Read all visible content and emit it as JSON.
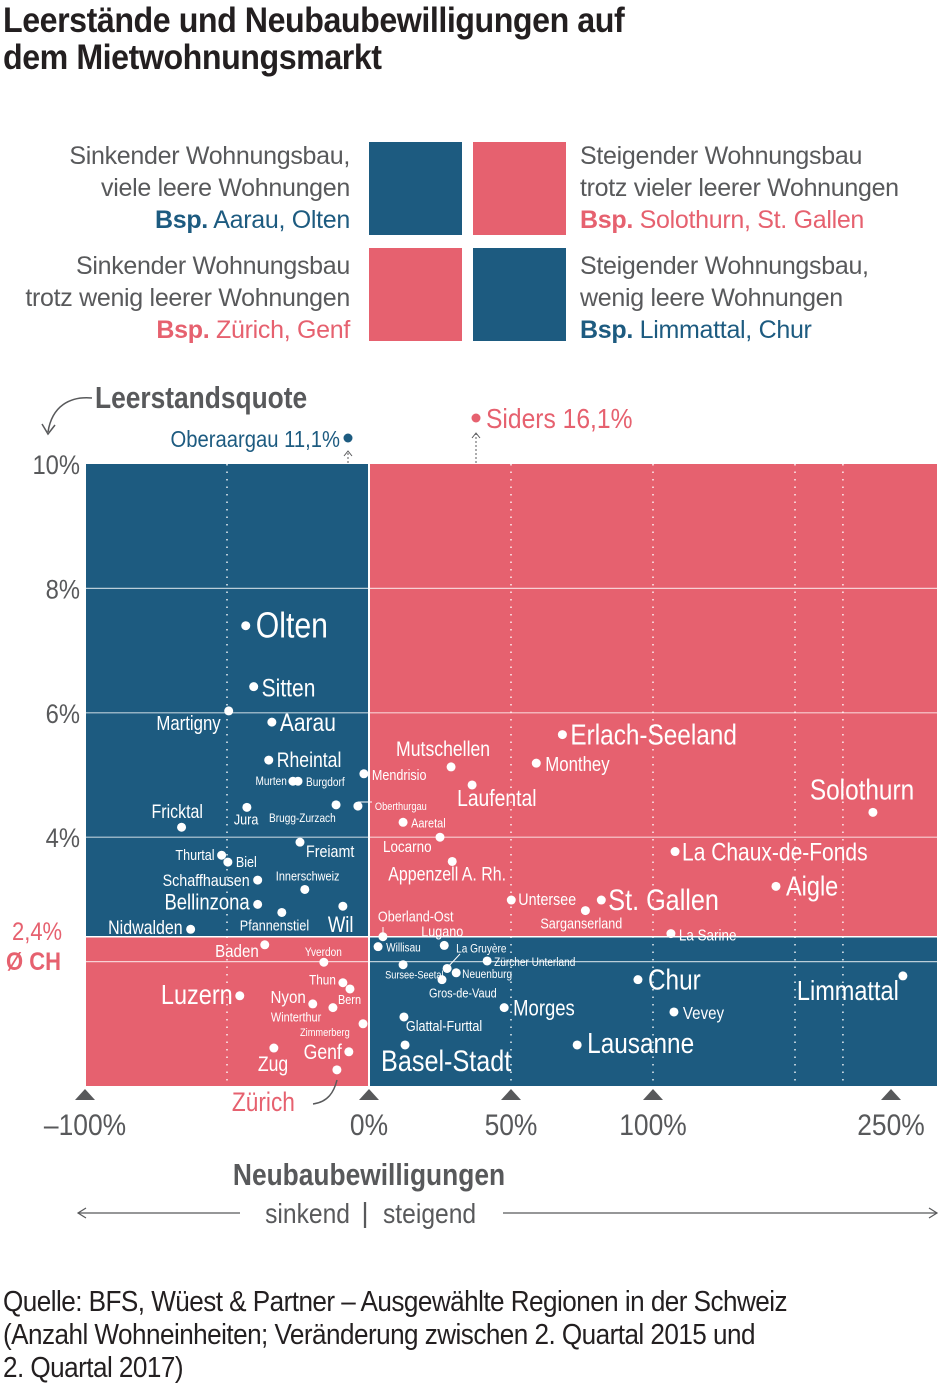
{
  "title_lines": [
    "Leerstände und Neubaubewilligungen auf",
    "dem Mietwohnungsmarkt"
  ],
  "colors": {
    "blue": "#1d5b80",
    "red": "#e6616f",
    "gray": "#58595b"
  },
  "legend": [
    {
      "line1": "Sinkender Wohnungsbau,",
      "line2": "viele leere Wohnungen",
      "bsp": "Bsp.",
      "example": "Aarau, Olten",
      "color": "blue"
    },
    {
      "line1": "Steigender Wohnungsbau",
      "line2": "trotz vieler leerer Wohnungen",
      "bsp": "Bsp.",
      "example": "Solothurn, St. Gallen",
      "color": "red"
    },
    {
      "line1": "Sinkender Wohnungsbau",
      "line2": "trotz wenig leerer Wohnungen",
      "bsp": "Bsp.",
      "example": "Zürich, Genf",
      "color": "red"
    },
    {
      "line1": "Steigender Wohnungsbau,",
      "line2": "wenig leere Wohnungen",
      "bsp": "Bsp.",
      "example": "Limmattal, Chur",
      "color": "blue"
    }
  ],
  "source_lines": [
    "Quelle: BFS, Wüest & Partner – Ausgewählte Regionen in der Schweiz",
    "(Anzahl Wohneinheiten; Veränderung zwischen 2. Quartal 2015 und",
    "2. Quartal 2017)"
  ],
  "chart_data": {
    "type": "scatter",
    "title": "Leerstände und Neubaubewilligungen auf dem Mietwohnungsmarkt",
    "ylabel": "Leerstandsquote",
    "xlabel": "Neubaubewilligungen",
    "xlabel_sub": {
      "left": "sinkend",
      "sep": "|",
      "right": "steigend"
    },
    "x_unit": "%",
    "y_unit": "%",
    "xlim": [
      -100,
      250
    ],
    "ylim": [
      0,
      10
    ],
    "x_ticks": [
      {
        "value": -100,
        "label": "–100%"
      },
      {
        "value": 0,
        "label": "0%"
      },
      {
        "value": 50,
        "label": "50%"
      },
      {
        "value": 100,
        "label": "100%"
      },
      {
        "value": 250,
        "label": "250%"
      }
    ],
    "y_ticks": [
      {
        "value": 10,
        "label": "10%"
      },
      {
        "value": 8,
        "label": "8%"
      },
      {
        "value": 6,
        "label": "6%"
      },
      {
        "value": 4,
        "label": "4%"
      }
    ],
    "average": {
      "value": 2.4,
      "label": "2,4%",
      "name": "Ø CH"
    },
    "outliers": [
      {
        "name": "Oberaargau 11,1%",
        "x": -7,
        "y": 11.1,
        "color": "blue"
      },
      {
        "name": "Siders 16,1%",
        "x": 37,
        "y": 16.1,
        "color": "red"
      }
    ],
    "points": [
      {
        "name": "Olten",
        "x": -43.4,
        "y": 7.4
      },
      {
        "name": "Sitten",
        "x": -40.6,
        "y": 6.42
      },
      {
        "name": "Martigny",
        "x": -49.4,
        "y": 6.03
      },
      {
        "name": "Aarau",
        "x": -34.2,
        "y": 5.85
      },
      {
        "name": "Rheintal",
        "x": -35.3,
        "y": 5.24
      },
      {
        "name": "Murten",
        "x": -26.8,
        "y": 4.9
      },
      {
        "name": "Burgdorf",
        "x": -25.0,
        "y": 4.9
      },
      {
        "name": "Mendrisio",
        "x": -1.8,
        "y": 5.02
      },
      {
        "name": "Mutschellen",
        "x": 28.9,
        "y": 5.13
      },
      {
        "name": "Laufental",
        "x": 36.3,
        "y": 4.84
      },
      {
        "name": "Erlach-Seeland",
        "x": 68.1,
        "y": 5.65
      },
      {
        "name": "Monthey",
        "x": 58.9,
        "y": 5.19
      },
      {
        "name": "Solothurn",
        "x": 238.6,
        "y": 4.4
      },
      {
        "name": "Jura",
        "x": -43.0,
        "y": 4.48
      },
      {
        "name": "Brugg-Zurzach",
        "x": -11.6,
        "y": 4.52
      },
      {
        "name": "Oberthurgau",
        "x": -3.9,
        "y": 4.5
      },
      {
        "name": "Aaretal",
        "x": 12.0,
        "y": 4.24
      },
      {
        "name": "Fricktal",
        "x": -66.0,
        "y": 4.16
      },
      {
        "name": "Freiamt",
        "x": -24.3,
        "y": 3.92
      },
      {
        "name": "Locarno",
        "x": 25.0,
        "y": 4.0
      },
      {
        "name": "Thurtal",
        "x": -51.9,
        "y": 3.71
      },
      {
        "name": "Biel",
        "x": -49.7,
        "y": 3.6
      },
      {
        "name": "Appenzell A. Rh.",
        "x": 29.3,
        "y": 3.61
      },
      {
        "name": "La Chaux-de-Fonds",
        "x": 113.9,
        "y": 3.77
      },
      {
        "name": "Schaffhausen",
        "x": -39.2,
        "y": 3.31
      },
      {
        "name": "Innerschweiz",
        "x": -22.6,
        "y": 3.16
      },
      {
        "name": "Aigle",
        "x": 177.5,
        "y": 3.21
      },
      {
        "name": "Untersee",
        "x": 50.1,
        "y": 2.99
      },
      {
        "name": "St. Gallen",
        "x": 81.8,
        "y": 2.99
      },
      {
        "name": "Sarganserland",
        "x": 76.2,
        "y": 2.82
      },
      {
        "name": "Bellinzona",
        "x": -39.2,
        "y": 2.92
      },
      {
        "name": "Pfannenstiel",
        "x": -30.7,
        "y": 2.79
      },
      {
        "name": "Wil",
        "x": -9.2,
        "y": 2.89
      },
      {
        "name": "Oberland-Ost",
        "x": 4.9,
        "y": 2.4
      },
      {
        "name": "Lugano",
        "x": 26.5,
        "y": 2.26
      },
      {
        "name": "Nidwalden",
        "x": -62.8,
        "y": 2.52
      },
      {
        "name": "La Sarine",
        "x": 111.3,
        "y": 2.45
      },
      {
        "name": "Baden",
        "x": -36.7,
        "y": 2.27
      },
      {
        "name": "Willisau",
        "x": 3.2,
        "y": 2.24
      },
      {
        "name": "La Gruyère",
        "x": 27.5,
        "y": 1.89
      },
      {
        "name": "Yverdon",
        "x": -15.9,
        "y": 1.99
      },
      {
        "name": "Zürcher Unterland",
        "x": 41.6,
        "y": 2.01
      },
      {
        "name": "Sursee-Seetal",
        "x": 12.0,
        "y": 1.95
      },
      {
        "name": "Neuenburg",
        "x": 30.7,
        "y": 1.82
      },
      {
        "name": "Gros-de-Vaud",
        "x": 25.7,
        "y": 1.71
      },
      {
        "name": "Thun",
        "x": -9.2,
        "y": 1.66
      },
      {
        "name": "Bern",
        "x": -6.7,
        "y": 1.56
      },
      {
        "name": "Chur",
        "x": 94.7,
        "y": 1.71
      },
      {
        "name": "Luzern",
        "x": -45.5,
        "y": 1.45
      },
      {
        "name": "Nyon",
        "x": -19.8,
        "y": 1.32
      },
      {
        "name": "Winterthur",
        "x": -12.7,
        "y": 1.26
      },
      {
        "name": "Limmattal",
        "x": 257.5,
        "y": 1.77
      },
      {
        "name": "Morges",
        "x": 47.6,
        "y": 1.26
      },
      {
        "name": "Vevey",
        "x": 113.2,
        "y": 1.19
      },
      {
        "name": "Zimmerberg",
        "x": -2.1,
        "y": 1.0
      },
      {
        "name": "Glattal-Furttal",
        "x": 12.3,
        "y": 1.11
      },
      {
        "name": "Genf",
        "x": -7.1,
        "y": 0.55
      },
      {
        "name": "Zug",
        "x": -33.5,
        "y": 0.61
      },
      {
        "name": "Basel-Stadt",
        "x": 12.7,
        "y": 0.66
      },
      {
        "name": "Lausanne",
        "x": 73.3,
        "y": 0.66
      },
      {
        "name": "Zürich",
        "x": -11.3,
        "y": 0.26
      }
    ]
  }
}
